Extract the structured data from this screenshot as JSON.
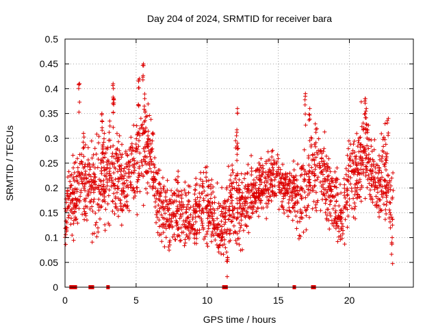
{
  "chart_data": {
    "type": "scatter",
    "title": "Day 204 of 2024, SRMTID for receiver bara",
    "xlabel": "GPS time / hours",
    "ylabel": "SRMTID / TECUs",
    "xlim": [
      0,
      24.5
    ],
    "ylim": [
      0,
      0.5
    ],
    "xticks": [
      0,
      5,
      10,
      15,
      20
    ],
    "xtick_labels": [
      "0",
      "5",
      "10",
      "15",
      "20"
    ],
    "yticks": [
      0,
      0.05,
      0.1,
      0.15,
      0.2,
      0.25,
      0.3,
      0.35,
      0.4,
      0.45,
      0.5
    ],
    "ytick_labels": [
      "0",
      "0.05",
      "0.1",
      "0.15",
      "0.2",
      "0.25",
      "0.3",
      "0.35",
      "0.4",
      "0.45",
      "0.5"
    ],
    "grid": true,
    "marker": "+",
    "series_color": "#dd0000",
    "series": [
      {
        "name": "SRMTID",
        "trend": {
          "x": [
            0,
            0.3,
            0.6,
            1.0,
            1.5,
            2.0,
            2.5,
            3.0,
            3.5,
            4.0,
            4.5,
            5.0,
            5.5,
            6.0,
            6.5,
            7.0,
            7.5,
            8.0,
            8.5,
            9.0,
            9.5,
            10.0,
            10.5,
            11.0,
            11.5,
            12.0,
            12.5,
            13.0,
            13.5,
            14.0,
            14.5,
            15.0,
            15.5,
            16.0,
            16.5,
            17.0,
            17.5,
            18.0,
            18.5,
            19.0,
            19.5,
            20.0,
            20.5,
            21.0,
            21.5,
            22.0,
            22.5,
            23.0
          ],
          "y": [
            0.12,
            0.2,
            0.17,
            0.21,
            0.2,
            0.19,
            0.22,
            0.24,
            0.22,
            0.21,
            0.22,
            0.25,
            0.29,
            0.26,
            0.18,
            0.15,
            0.14,
            0.15,
            0.14,
            0.14,
            0.16,
            0.17,
            0.13,
            0.12,
            0.15,
            0.18,
            0.16,
            0.19,
            0.2,
            0.2,
            0.22,
            0.21,
            0.2,
            0.19,
            0.17,
            0.2,
            0.24,
            0.25,
            0.2,
            0.17,
            0.15,
            0.23,
            0.22,
            0.29,
            0.24,
            0.2,
            0.22,
            0.17
          ],
          "spread": [
            0.04,
            0.05,
            0.06,
            0.07,
            0.07,
            0.07,
            0.07,
            0.08,
            0.07,
            0.06,
            0.06,
            0.07,
            0.08,
            0.06,
            0.05,
            0.05,
            0.05,
            0.05,
            0.05,
            0.05,
            0.05,
            0.06,
            0.05,
            0.05,
            0.06,
            0.07,
            0.05,
            0.05,
            0.04,
            0.04,
            0.04,
            0.04,
            0.04,
            0.05,
            0.05,
            0.06,
            0.07,
            0.06,
            0.06,
            0.05,
            0.05,
            0.06,
            0.06,
            0.07,
            0.06,
            0.06,
            0.07,
            0.05
          ]
        },
        "peaks": [
          {
            "x": 1.0,
            "y": 0.41
          },
          {
            "x": 1.3,
            "y": 0.31
          },
          {
            "x": 2.6,
            "y": 0.35
          },
          {
            "x": 3.4,
            "y": 0.41
          },
          {
            "x": 3.4,
            "y": 0.38
          },
          {
            "x": 5.2,
            "y": 0.42
          },
          {
            "x": 5.5,
            "y": 0.45
          },
          {
            "x": 5.6,
            "y": 0.38
          },
          {
            "x": 11.4,
            "y": 0.06
          },
          {
            "x": 12.1,
            "y": 0.36
          },
          {
            "x": 12.1,
            "y": 0.29
          },
          {
            "x": 16.9,
            "y": 0.39
          },
          {
            "x": 17.2,
            "y": 0.36
          },
          {
            "x": 21.1,
            "y": 0.38
          },
          {
            "x": 21.2,
            "y": 0.36
          },
          {
            "x": 22.7,
            "y": 0.34
          },
          {
            "x": 23.0,
            "y": 0.1
          }
        ],
        "zero_segments": [
          [
            0.4,
            0.75
          ],
          [
            1.75,
            1.95
          ],
          [
            3.0,
            3.05
          ],
          [
            11.15,
            11.35
          ],
          [
            16.1,
            16.15
          ],
          [
            17.4,
            17.55
          ]
        ],
        "x_range": [
          0,
          23.1
        ],
        "n_points": 2200
      }
    ]
  }
}
